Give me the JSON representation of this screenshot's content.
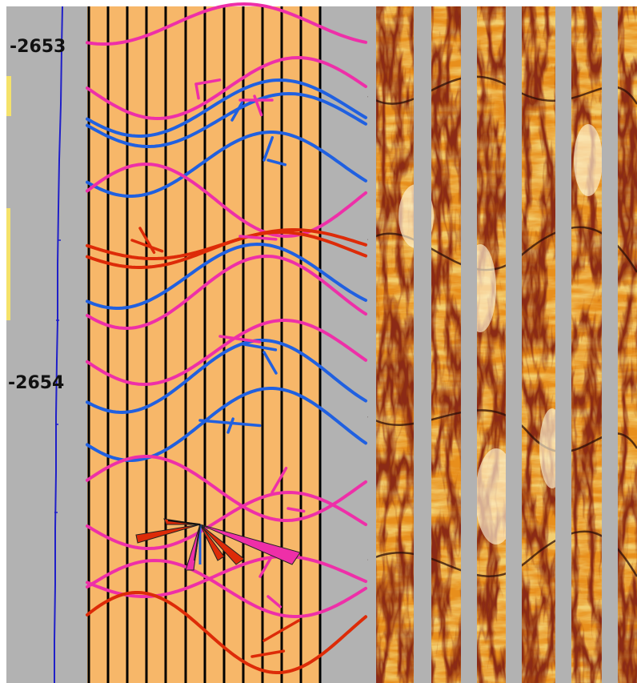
{
  "viewer": {
    "depth_labels": [
      "-2653",
      "-2654"
    ],
    "depth_values": [
      -2653,
      -2654
    ]
  },
  "colors": {
    "background": "#ffffff",
    "track_gray": "#b2b2b2",
    "track_orange": "#f7b769",
    "curve_line": "#1f1fc8",
    "grid_line": "#000000",
    "sine_pink": "#ee2fa8",
    "sine_blue": "#2060e0",
    "sine_red": "#dd2b08",
    "image_light": "#f7d77a",
    "image_mid": "#e8901c",
    "image_dark": "#8b2a12",
    "image_black": "#2b0d0a"
  },
  "tracks": {
    "curve_track": "gamma-curve",
    "dip_track": "sinusoid-picks",
    "image_track": "borehole-image"
  },
  "icons": {
    "rose": "dip-azimuth-rose-icon"
  }
}
